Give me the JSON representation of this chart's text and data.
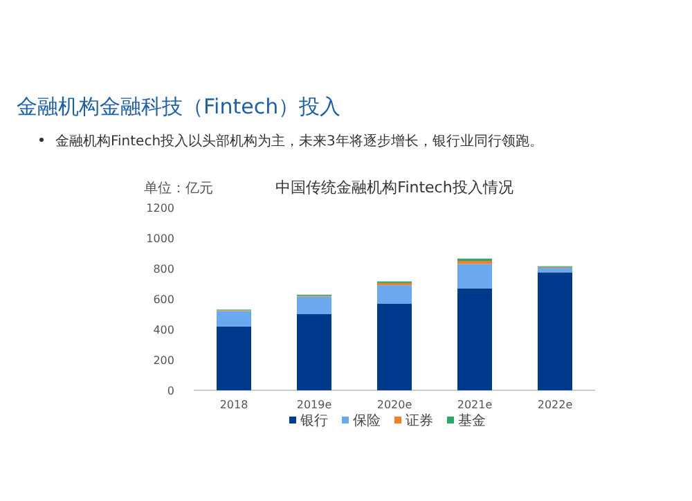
{
  "chart_data": {
    "type": "bar",
    "stacked": true,
    "title": "金融机构金融科技（Fintech）投入",
    "subtitle": "中国传统金融机构Fintech投入情况",
    "annotations": [
      "金融机构Fintech投入以头部机构为主，未来3年将逐步增长，银行业同行领跑。"
    ],
    "ylabel": "单位：亿元",
    "categories": [
      "2018",
      "2019e",
      "2020e",
      "2021e",
      "2022e"
    ],
    "series": [
      {
        "name": "银行",
        "color": "#003a8c",
        "values": [
          420,
          500,
          570,
          670,
          775
        ]
      },
      {
        "name": "保险",
        "color": "#6aa8f0",
        "values": [
          100,
          115,
          120,
          160,
          30
        ]
      },
      {
        "name": "证券",
        "color": "#f07f2a",
        "values": [
          5,
          5,
          15,
          20,
          5
        ]
      },
      {
        "name": "基金",
        "color": "#2ea56a",
        "values": [
          5,
          8,
          10,
          15,
          5
        ]
      }
    ],
    "ylim": [
      0,
      1200
    ],
    "yticks": [
      0,
      200,
      400,
      600,
      800,
      1000,
      1200
    ],
    "grid": false,
    "legend": "bottom"
  }
}
